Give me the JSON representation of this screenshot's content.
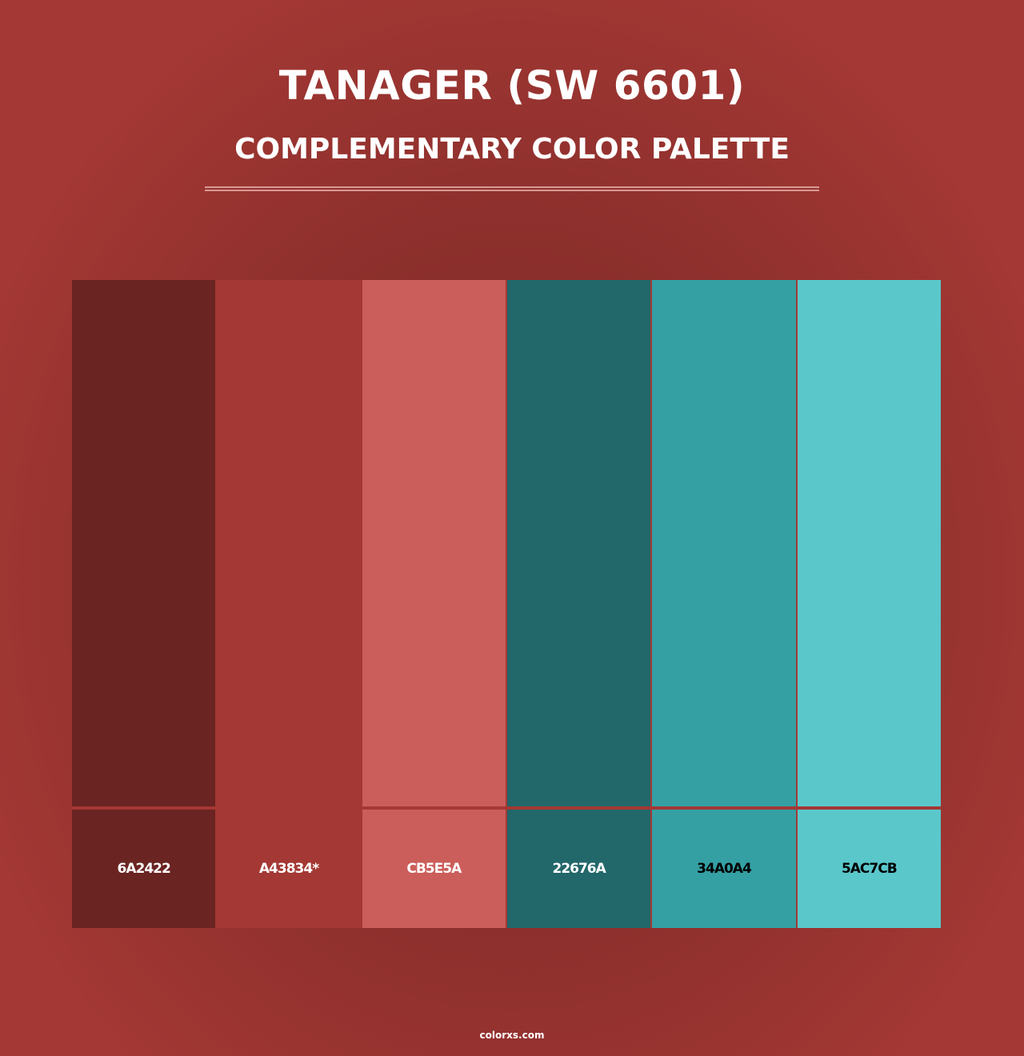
{
  "header": {
    "title": "TANAGER (SW 6601)",
    "subtitle": "COMPLEMENTARY COLOR PALETTE"
  },
  "swatches": [
    {
      "label": "6A2422",
      "color": "#6A2422",
      "text_color": "#ffffff"
    },
    {
      "label": "A43834*",
      "color": "#A43834",
      "text_color": "#ffffff"
    },
    {
      "label": "CB5E5A",
      "color": "#CB5E5A",
      "text_color": "#ffffff"
    },
    {
      "label": "22676A",
      "color": "#22676A",
      "text_color": "#ffffff"
    },
    {
      "label": "34A0A4",
      "color": "#34A0A4",
      "text_color": "#000000"
    },
    {
      "label": "5AC7CB",
      "color": "#5AC7CB",
      "text_color": "#000000"
    }
  ],
  "footer": {
    "site": "colorxs.com"
  }
}
